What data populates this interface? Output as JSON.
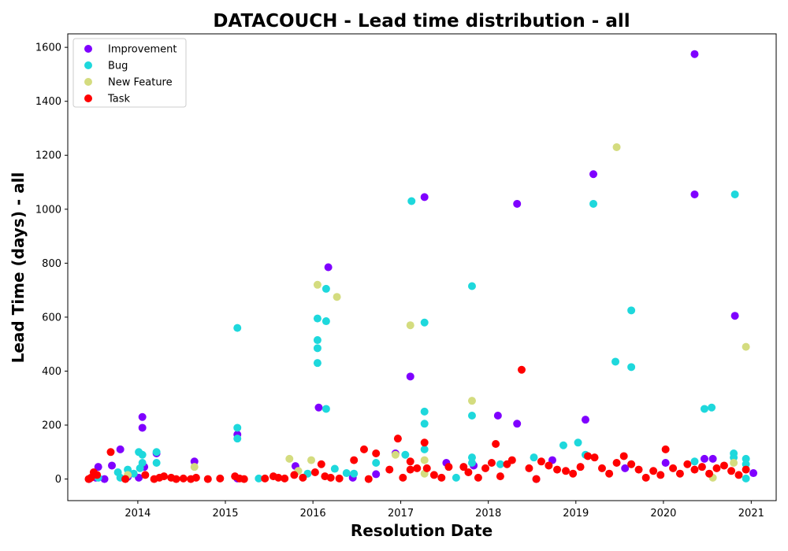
{
  "chart_data": {
    "type": "scatter",
    "title": "DATACOUCH - Lead time distribution - all",
    "xlabel": "Resolution Date",
    "ylabel": "Lead Time (days) - all",
    "xlim": [
      "2013-03-15",
      "2021-04-15"
    ],
    "ylim": [
      -80,
      1650
    ],
    "x_ticks": [
      "2014-01-01",
      "2015-01-01",
      "2016-01-01",
      "2017-01-01",
      "2018-01-01",
      "2019-01-01",
      "2020-01-01",
      "2021-01-01"
    ],
    "x_tick_labels": [
      "2014",
      "2015",
      "2016",
      "2017",
      "2018",
      "2019",
      "2020",
      "2021"
    ],
    "y_ticks": [
      0,
      200,
      400,
      600,
      800,
      1000,
      1200,
      1400,
      1600
    ],
    "y_tick_labels": [
      "0",
      "200",
      "400",
      "600",
      "800",
      "1000",
      "1200",
      "1400",
      "1600"
    ],
    "grid": false,
    "legend_position": "top-left",
    "series": [
      {
        "name": "Improvement",
        "color": "#7f00ff",
        "points": [
          [
            "2013-06-12",
            0
          ],
          [
            "2013-07-10",
            5
          ],
          [
            "2013-07-20",
            45
          ],
          [
            "2013-08-15",
            0
          ],
          [
            "2013-09-15",
            50
          ],
          [
            "2013-10-20",
            110
          ],
          [
            "2013-11-20",
            8
          ],
          [
            "2014-01-05",
            5
          ],
          [
            "2014-01-20",
            230
          ],
          [
            "2014-01-20",
            190
          ],
          [
            "2014-01-28",
            45
          ],
          [
            "2014-03-20",
            95
          ],
          [
            "2014-08-25",
            65
          ],
          [
            "2015-02-20",
            165
          ],
          [
            "2015-02-20",
            2
          ],
          [
            "2015-10-20",
            48
          ],
          [
            "2016-01-25",
            265
          ],
          [
            "2016-03-05",
            785
          ],
          [
            "2016-06-15",
            5
          ],
          [
            "2016-09-20",
            18
          ],
          [
            "2016-12-10",
            95
          ],
          [
            "2017-02-10",
            380
          ],
          [
            "2017-04-10",
            1045
          ],
          [
            "2017-07-10",
            60
          ],
          [
            "2017-11-01",
            50
          ],
          [
            "2018-02-10",
            235
          ],
          [
            "2018-05-01",
            205
          ],
          [
            "2018-05-01",
            1020
          ],
          [
            "2018-07-20",
            0
          ],
          [
            "2018-09-25",
            70
          ],
          [
            "2019-02-10",
            220
          ],
          [
            "2019-03-15",
            1130
          ],
          [
            "2019-07-25",
            40
          ],
          [
            "2020-01-10",
            60
          ],
          [
            "2020-05-10",
            1575
          ],
          [
            "2020-05-10",
            1055
          ],
          [
            "2020-06-20",
            75
          ],
          [
            "2020-07-25",
            75
          ],
          [
            "2020-10-25",
            605
          ],
          [
            "2021-01-10",
            22
          ]
        ]
      },
      {
        "name": "Bug",
        "color": "#1ed8dc",
        "points": [
          [
            "2013-07-20",
            5
          ],
          [
            "2013-10-10",
            25
          ],
          [
            "2013-10-20",
            5
          ],
          [
            "2013-11-20",
            35
          ],
          [
            "2013-12-15",
            20
          ],
          [
            "2014-01-05",
            100
          ],
          [
            "2014-01-20",
            90
          ],
          [
            "2014-01-20",
            60
          ],
          [
            "2014-01-10",
            40
          ],
          [
            "2014-03-20",
            100
          ],
          [
            "2014-03-20",
            60
          ],
          [
            "2015-02-20",
            560
          ],
          [
            "2015-02-20",
            190
          ],
          [
            "2015-02-20",
            150
          ],
          [
            "2015-05-20",
            2
          ],
          [
            "2015-12-10",
            20
          ],
          [
            "2016-01-20",
            595
          ],
          [
            "2016-01-20",
            515
          ],
          [
            "2016-01-20",
            485
          ],
          [
            "2016-01-20",
            430
          ],
          [
            "2016-02-25",
            705
          ],
          [
            "2016-02-25",
            585
          ],
          [
            "2016-02-25",
            260
          ],
          [
            "2016-04-01",
            38
          ],
          [
            "2016-05-20",
            22
          ],
          [
            "2016-06-20",
            20
          ],
          [
            "2016-09-20",
            60
          ],
          [
            "2017-01-20",
            90
          ],
          [
            "2017-02-15",
            1030
          ],
          [
            "2017-04-10",
            580
          ],
          [
            "2017-04-10",
            250
          ],
          [
            "2017-04-10",
            205
          ],
          [
            "2017-04-10",
            110
          ],
          [
            "2017-08-20",
            5
          ],
          [
            "2017-10-25",
            715
          ],
          [
            "2017-10-25",
            235
          ],
          [
            "2017-10-25",
            80
          ],
          [
            "2017-10-25",
            60
          ],
          [
            "2018-02-20",
            55
          ],
          [
            "2018-07-10",
            80
          ],
          [
            "2018-11-10",
            125
          ],
          [
            "2019-01-10",
            135
          ],
          [
            "2019-02-10",
            90
          ],
          [
            "2019-03-15",
            1020
          ],
          [
            "2019-06-15",
            435
          ],
          [
            "2019-08-20",
            625
          ],
          [
            "2019-08-20",
            415
          ],
          [
            "2020-05-10",
            65
          ],
          [
            "2020-06-20",
            260
          ],
          [
            "2020-07-20",
            265
          ],
          [
            "2020-10-20",
            95
          ],
          [
            "2020-10-20",
            80
          ],
          [
            "2020-10-25",
            1055
          ],
          [
            "2020-12-10",
            75
          ],
          [
            "2020-12-10",
            55
          ],
          [
            "2020-12-10",
            2
          ]
        ]
      },
      {
        "name": "New Feature",
        "color": "#d4dc7f",
        "points": [
          [
            "2013-11-20",
            15
          ],
          [
            "2014-08-25",
            45
          ],
          [
            "2015-09-25",
            75
          ],
          [
            "2015-11-01",
            30
          ],
          [
            "2015-12-25",
            70
          ],
          [
            "2016-01-20",
            720
          ],
          [
            "2016-04-10",
            675
          ],
          [
            "2016-12-10",
            90
          ],
          [
            "2017-02-10",
            570
          ],
          [
            "2017-04-10",
            70
          ],
          [
            "2017-04-10",
            20
          ],
          [
            "2017-10-25",
            290
          ],
          [
            "2019-06-20",
            1230
          ],
          [
            "2019-08-20",
            55
          ],
          [
            "2020-07-25",
            5
          ],
          [
            "2020-10-20",
            60
          ],
          [
            "2020-12-10",
            490
          ]
        ]
      },
      {
        "name": "Task",
        "color": "#ff0000",
        "points": [
          [
            "2013-06-10",
            0
          ],
          [
            "2013-06-20",
            5
          ],
          [
            "2013-07-01",
            25
          ],
          [
            "2013-07-15",
            15
          ],
          [
            "2013-09-10",
            100
          ],
          [
            "2013-11-10",
            0
          ],
          [
            "2014-02-01",
            15
          ],
          [
            "2014-03-10",
            0
          ],
          [
            "2014-04-01",
            5
          ],
          [
            "2014-04-20",
            10
          ],
          [
            "2014-05-20",
            5
          ],
          [
            "2014-06-10",
            0
          ],
          [
            "2014-07-10",
            2
          ],
          [
            "2014-08-10",
            0
          ],
          [
            "2014-09-01",
            5
          ],
          [
            "2014-10-20",
            0
          ],
          [
            "2014-12-10",
            2
          ],
          [
            "2015-02-10",
            10
          ],
          [
            "2015-03-01",
            2
          ],
          [
            "2015-03-20",
            0
          ],
          [
            "2015-06-15",
            2
          ],
          [
            "2015-07-20",
            10
          ],
          [
            "2015-08-10",
            5
          ],
          [
            "2015-09-05",
            2
          ],
          [
            "2015-10-15",
            15
          ],
          [
            "2015-11-20",
            5
          ],
          [
            "2016-01-10",
            25
          ],
          [
            "2016-02-05",
            55
          ],
          [
            "2016-02-20",
            10
          ],
          [
            "2016-03-15",
            5
          ],
          [
            "2016-04-20",
            2
          ],
          [
            "2016-06-20",
            70
          ],
          [
            "2016-08-01",
            110
          ],
          [
            "2016-08-20",
            0
          ],
          [
            "2016-09-20",
            95
          ],
          [
            "2016-11-15",
            35
          ],
          [
            "2016-12-20",
            150
          ],
          [
            "2017-01-10",
            5
          ],
          [
            "2017-02-10",
            35
          ],
          [
            "2017-02-10",
            65
          ],
          [
            "2017-03-10",
            40
          ],
          [
            "2017-04-10",
            135
          ],
          [
            "2017-04-20",
            40
          ],
          [
            "2017-05-20",
            15
          ],
          [
            "2017-06-20",
            5
          ],
          [
            "2017-07-20",
            45
          ],
          [
            "2017-09-20",
            45
          ],
          [
            "2017-10-10",
            25
          ],
          [
            "2017-11-20",
            5
          ],
          [
            "2017-12-20",
            40
          ],
          [
            "2018-01-15",
            60
          ],
          [
            "2018-02-01",
            130
          ],
          [
            "2018-02-20",
            10
          ],
          [
            "2018-03-20",
            55
          ],
          [
            "2018-04-10",
            70
          ],
          [
            "2018-05-20",
            405
          ],
          [
            "2018-06-20",
            40
          ],
          [
            "2018-07-20",
            0
          ],
          [
            "2018-08-10",
            65
          ],
          [
            "2018-09-10",
            50
          ],
          [
            "2018-10-15",
            35
          ],
          [
            "2018-11-20",
            30
          ],
          [
            "2018-12-20",
            20
          ],
          [
            "2019-01-20",
            45
          ],
          [
            "2019-02-20",
            85
          ],
          [
            "2019-03-20",
            80
          ],
          [
            "2019-04-20",
            40
          ],
          [
            "2019-05-20",
            20
          ],
          [
            "2019-06-20",
            60
          ],
          [
            "2019-07-20",
            85
          ],
          [
            "2019-08-20",
            55
          ],
          [
            "2019-09-20",
            35
          ],
          [
            "2019-10-20",
            5
          ],
          [
            "2019-11-20",
            30
          ],
          [
            "2019-12-20",
            15
          ],
          [
            "2020-01-10",
            110
          ],
          [
            "2020-02-10",
            40
          ],
          [
            "2020-03-10",
            20
          ],
          [
            "2020-04-10",
            55
          ],
          [
            "2020-05-10",
            35
          ],
          [
            "2020-06-10",
            45
          ],
          [
            "2020-07-10",
            20
          ],
          [
            "2020-08-10",
            40
          ],
          [
            "2020-09-10",
            50
          ],
          [
            "2020-10-10",
            30
          ],
          [
            "2020-11-10",
            15
          ],
          [
            "2020-12-10",
            35
          ]
        ]
      }
    ]
  }
}
